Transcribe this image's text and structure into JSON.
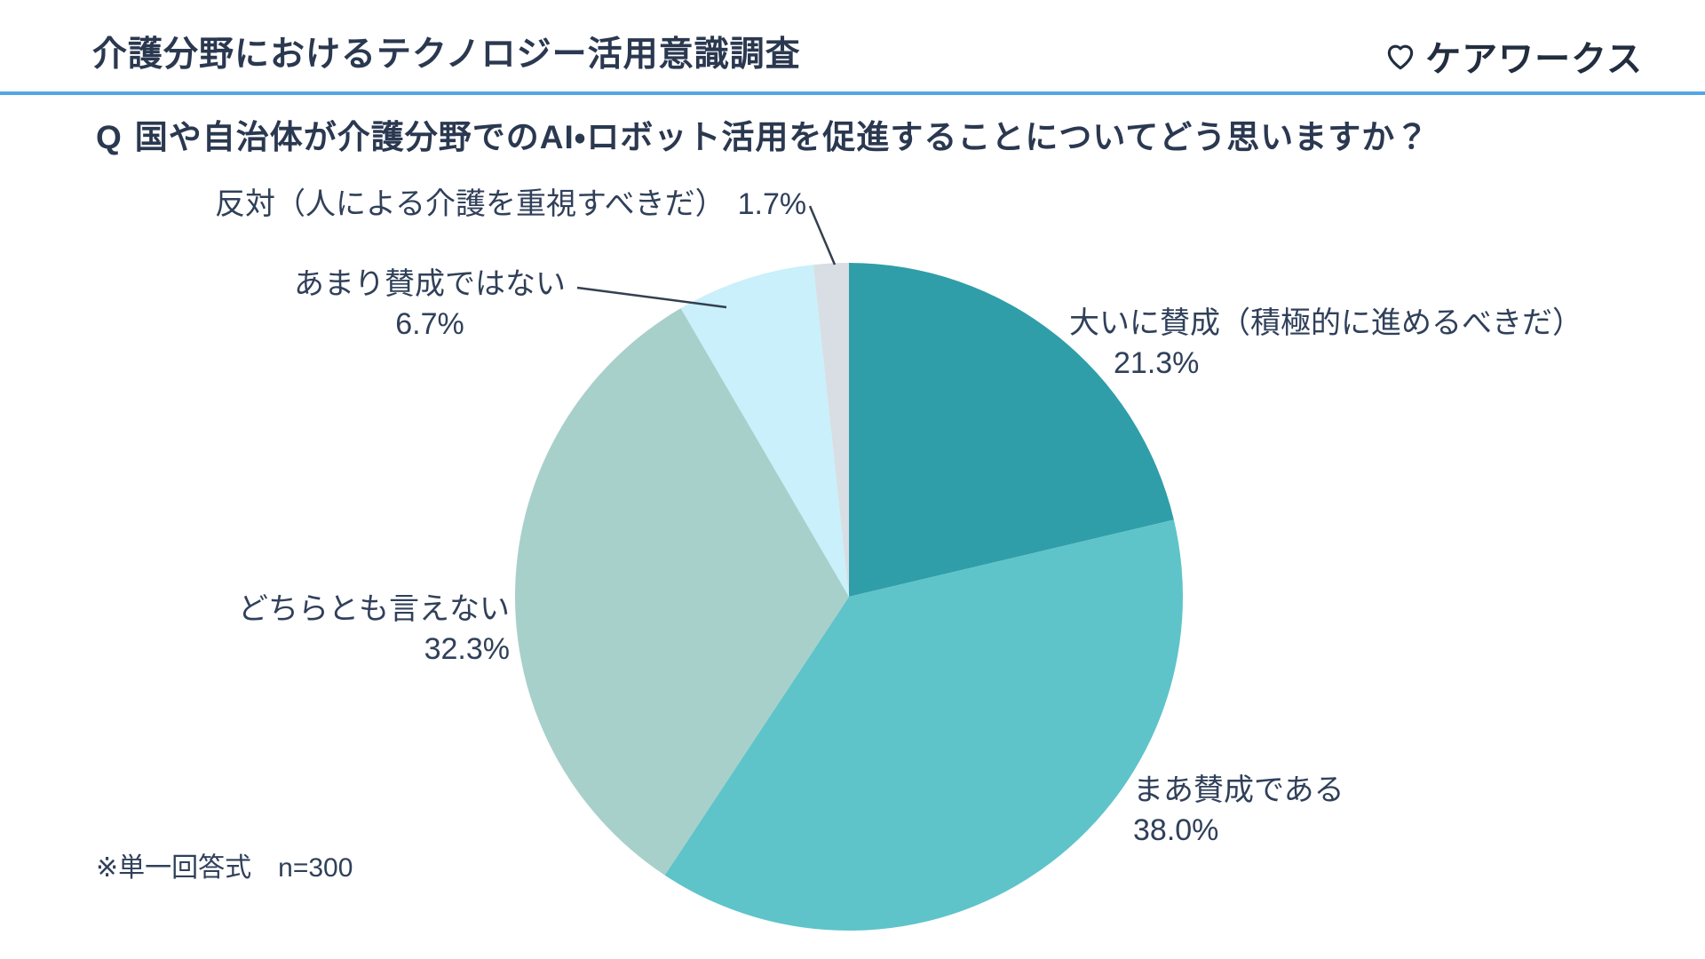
{
  "header": {
    "title": "介護分野におけるテクノロジー活用意識調査",
    "logo_text": "ケアワークス"
  },
  "question": {
    "prefix": "Q",
    "text": "国や自治体が介護分野でのAI・ロボット活用を促進することについてどう思いますか？"
  },
  "footnote": "※単一回答式　n=300",
  "colors": {
    "divider_blue": "#54A5E6",
    "text_navy": "#2A3850"
  },
  "chart_data": {
    "type": "pie",
    "title": "国や自治体が介護分野でのAI・ロボット活用を促進することについてどう思いますか？",
    "labels": [
      "大いに賛成（積極的に進めるべきだ）",
      "まあ賛成である",
      "どちらとも言えない",
      "あまり賛成ではない",
      "反対（人による介護を重視すべきだ）"
    ],
    "values": [
      21.3,
      38.0,
      32.3,
      6.7,
      1.7
    ],
    "value_labels": [
      "21.3%",
      "38.0%",
      "32.3%",
      "6.7%",
      "1.7%"
    ],
    "colors": [
      "#2F9EA8",
      "#5EC4C9",
      "#A8D0CB",
      "#C9F0FB",
      "#D8DEE3"
    ],
    "unit": "%",
    "start_angle_deg": 0,
    "direction": "clockwise",
    "legend": "none",
    "sample_note": "単一回答式",
    "sample_size": 300
  }
}
